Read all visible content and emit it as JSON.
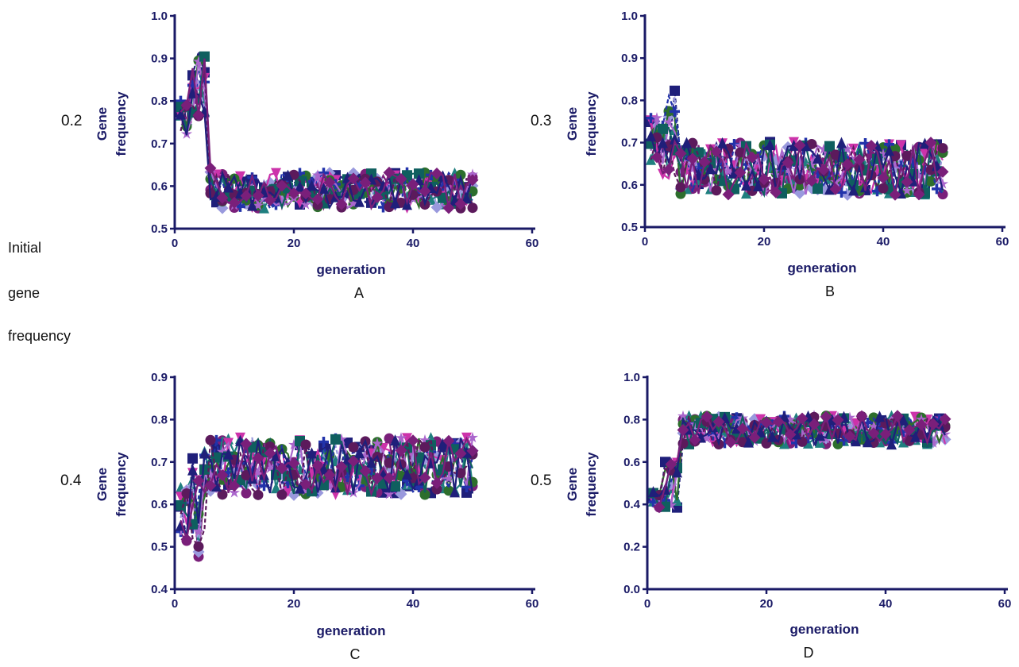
{
  "figure": {
    "row_label_lines": [
      "Initial",
      "gene",
      "frequency"
    ]
  },
  "colors": {
    "axis": "#1a1a66",
    "palette": [
      "#1f1f7a",
      "#7a1f7a",
      "#1f7f7f",
      "#9999dd",
      "#cc33aa",
      "#2d6e2d",
      "#2233aa",
      "#aa66cc",
      "#0f5f5f",
      "#5c1a5c"
    ]
  },
  "chart_data": [
    {
      "id": "A",
      "type": "scatter",
      "panel_letter": "A",
      "side_label": "0.2",
      "xlabel": "generation",
      "ylabel_lines": [
        "Gene",
        "frequency"
      ],
      "xlim": [
        0,
        60
      ],
      "ylim": [
        0.5,
        1.0
      ],
      "xticks": [
        0,
        20,
        40,
        60
      ],
      "yticks": [
        0.5,
        0.6,
        0.7,
        0.8,
        0.9,
        1.0
      ],
      "ytick_labels": [
        "0.5",
        "0.6",
        "0.7",
        "0.8",
        "0.9",
        "1.0"
      ],
      "series_count": 12,
      "generations": [
        1,
        50
      ],
      "phases": [
        {
          "x": [
            1,
            2
          ],
          "mean": 0.76,
          "spread": 0.05
        },
        {
          "x": [
            2,
            5
          ],
          "mean": 0.84,
          "spread": 0.09
        },
        {
          "x": [
            6,
            6
          ],
          "mean": 0.6,
          "spread": 0.05
        },
        {
          "x": [
            7,
            50
          ],
          "mean": 0.59,
          "spread": 0.05
        }
      ]
    },
    {
      "id": "B",
      "type": "scatter",
      "panel_letter": "B",
      "side_label": "0.3",
      "xlabel": "generation",
      "ylabel_lines": [
        "Gene",
        "frequency"
      ],
      "xlim": [
        0,
        60
      ],
      "ylim": [
        0.5,
        1.0
      ],
      "xticks": [
        0,
        20,
        40,
        60
      ],
      "yticks": [
        0.5,
        0.6,
        0.7,
        0.8,
        0.9,
        1.0
      ],
      "ytick_labels": [
        "0.5",
        "0.6",
        "0.7",
        "0.8",
        "0.9",
        "1.0"
      ],
      "series_count": 12,
      "generations": [
        1,
        50
      ],
      "phases": [
        {
          "x": [
            1,
            2
          ],
          "mean": 0.71,
          "spread": 0.06
        },
        {
          "x": [
            2,
            5
          ],
          "mean": 0.72,
          "spread": 0.13
        },
        {
          "x": [
            6,
            50
          ],
          "mean": 0.64,
          "spread": 0.075
        }
      ]
    },
    {
      "id": "C",
      "type": "scatter",
      "panel_letter": "C",
      "side_label": "0.4",
      "xlabel": "generation",
      "ylabel_lines": [
        "Gene",
        "frequency"
      ],
      "xlim": [
        0,
        60
      ],
      "ylim": [
        0.4,
        0.9
      ],
      "xticks": [
        0,
        20,
        40,
        60
      ],
      "yticks": [
        0.4,
        0.5,
        0.6,
        0.7,
        0.8,
        0.9
      ],
      "ytick_labels": [
        "0.4",
        "0.5",
        "0.6",
        "0.7",
        "0.8",
        "0.9"
      ],
      "series_count": 12,
      "generations": [
        1,
        50
      ],
      "phases": [
        {
          "x": [
            1,
            2
          ],
          "mean": 0.58,
          "spread": 0.08
        },
        {
          "x": [
            2,
            5
          ],
          "mean": 0.6,
          "spread": 0.15
        },
        {
          "x": [
            6,
            50
          ],
          "mean": 0.69,
          "spread": 0.08
        }
      ]
    },
    {
      "id": "D",
      "type": "scatter",
      "panel_letter": "D",
      "side_label": "0.5",
      "xlabel": "generation",
      "ylabel_lines": [
        "Gene",
        "frequency"
      ],
      "xlim": [
        0,
        60
      ],
      "ylim": [
        0.0,
        1.0
      ],
      "xticks": [
        0,
        20,
        40,
        60
      ],
      "yticks": [
        0.0,
        0.2,
        0.4,
        0.6,
        0.8,
        1.0
      ],
      "ytick_labels": [
        "0.0",
        "0.2",
        "0.4",
        "0.6",
        "0.8",
        "1.0"
      ],
      "series_count": 12,
      "generations": [
        1,
        50
      ],
      "phases": [
        {
          "x": [
            1,
            2
          ],
          "mean": 0.42,
          "spread": 0.05
        },
        {
          "x": [
            2,
            5
          ],
          "mean": 0.5,
          "spread": 0.14
        },
        {
          "x": [
            6,
            50
          ],
          "mean": 0.75,
          "spread": 0.08
        }
      ]
    }
  ]
}
